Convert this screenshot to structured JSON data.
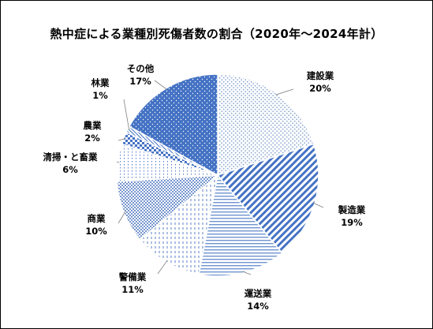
{
  "chart_data": {
    "type": "pie",
    "title": "熱中症による業種別死傷者数の割合（2020年〜2024年計）",
    "slices": [
      {
        "name": "建設業",
        "label": "20%",
        "value": 20,
        "pattern": "dots-grey"
      },
      {
        "name": "製造業",
        "label": "19%",
        "value": 19,
        "pattern": "diag-blue"
      },
      {
        "name": "運送業",
        "label": "14%",
        "value": 14,
        "pattern": "hlines-blue"
      },
      {
        "name": "警備業",
        "label": "11%",
        "value": 11,
        "pattern": "vdash-blue"
      },
      {
        "name": "商業",
        "label": "10%",
        "value": 10,
        "pattern": "dots-blue"
      },
      {
        "name": "清掃・と畜業",
        "label": "6%",
        "value": 6,
        "pattern": "vdots-blue"
      },
      {
        "name": "農業",
        "label": "2%",
        "value": 2,
        "pattern": "check-blue"
      },
      {
        "name": "林業",
        "label": "1%",
        "value": 1,
        "pattern": "diag-fine"
      },
      {
        "name": "その他",
        "label": "17%",
        "value": 17,
        "pattern": "dots-white-on-blue"
      }
    ],
    "start": "12 o'clock",
    "direction": "clockwise",
    "legend": "none",
    "data_labels": "outside with leader lines",
    "colors": {
      "accent": "#4472c4",
      "light": "#a9c1e6",
      "stroke": "#ffffff"
    }
  }
}
